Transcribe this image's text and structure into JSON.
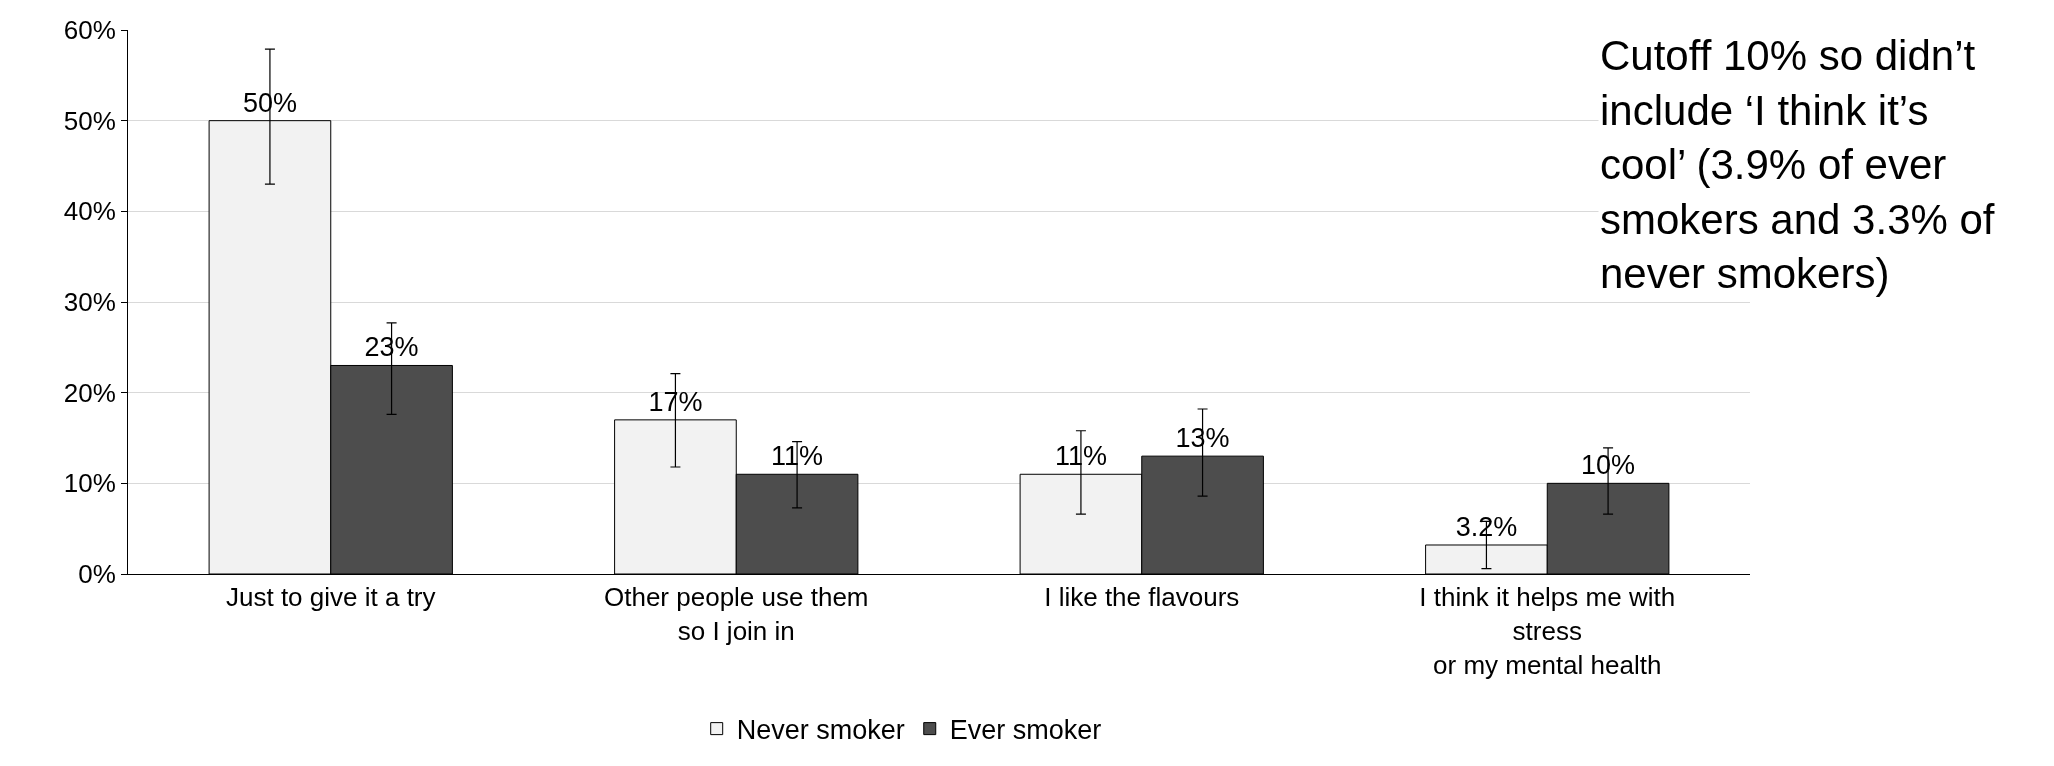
{
  "chart_data": {
    "type": "bar",
    "categories": [
      "Just to give it a try",
      "Other people use them\nso I join in",
      "I like the flavours",
      "I think it helps me with\nstress\nor my mental health"
    ],
    "series": [
      {
        "name": "Never smoker",
        "color": "#f2f2f2",
        "values": [
          50,
          17,
          11,
          3.2
        ],
        "value_labels": [
          "50%",
          "17%",
          "11%",
          "3.2%"
        ],
        "errors": [
          [
            43.0,
            57.9
          ],
          [
            11.8,
            22.1
          ],
          [
            6.6,
            15.8
          ],
          [
            0.6,
            5.8
          ]
        ]
      },
      {
        "name": "Ever smoker",
        "color": "#4d4d4d",
        "values": [
          23,
          11,
          13,
          10
        ],
        "value_labels": [
          "23%",
          "11%",
          "13%",
          "10%"
        ],
        "errors": [
          [
            17.6,
            27.7
          ],
          [
            7.3,
            14.6
          ],
          [
            8.6,
            18.2
          ],
          [
            6.6,
            13.9
          ]
        ]
      }
    ],
    "ylim": [
      0,
      60
    ],
    "yticks": [
      {
        "value": 0,
        "label": "0%"
      },
      {
        "value": 10,
        "label": "10%"
      },
      {
        "value": 20,
        "label": "20%"
      },
      {
        "value": 30,
        "label": "30%"
      },
      {
        "value": 40,
        "label": "40%"
      },
      {
        "value": 50,
        "label": "50%"
      },
      {
        "value": 60,
        "label": "60%"
      }
    ],
    "grid": "y",
    "legend": "bottom",
    "annotations": [
      "Cutoff 10% so didn’t\ninclude ‘I think it’s\ncool’ (3.9% of ever\nsmokers and 3.3% of\nnever smokers)"
    ]
  }
}
